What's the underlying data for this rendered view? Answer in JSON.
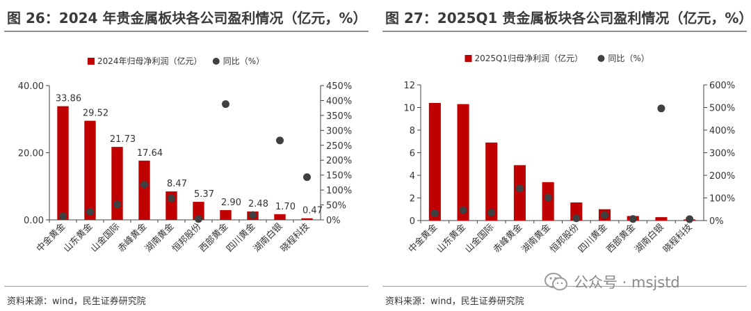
{
  "colors": {
    "bar": "#c00000",
    "dot": "#404040",
    "axis": "#404040",
    "title": "#3a3a3a"
  },
  "figures": [
    {
      "title": "图 26：2024 年贵金属板块各公司盈利情况（亿元，%）",
      "source": "资料来源：wind，民生证券研究院"
    },
    {
      "title": "图 27：2025Q1 贵金属板块各公司盈利情况（亿元，%）",
      "source": "资料来源：wind，民生证券研究院"
    }
  ],
  "chart_data": [
    {
      "type": "bar",
      "categories": [
        "中金黄金",
        "山东黄金",
        "山金国际",
        "赤峰黄金",
        "湖南黄金",
        "恒邦股份",
        "西部黄金",
        "四川黄金",
        "湖南白银",
        "晓程科技"
      ],
      "series": [
        {
          "name": "2024年归母净利润（亿元）",
          "kind": "bar",
          "axis": "left",
          "values": [
            33.86,
            29.52,
            21.73,
            17.64,
            8.47,
            5.37,
            2.9,
            2.48,
            1.7,
            0.47
          ]
        },
        {
          "name": "同比（%）",
          "kind": "dot",
          "axis": "right",
          "values": [
            13,
            27,
            52,
            118,
            72,
            3,
            388,
            16,
            266,
            143
          ]
        }
      ],
      "data_labels": [
        "33.86",
        "29.52",
        "21.73",
        "17.64",
        "8.47",
        "5.37",
        "2.90",
        "2.48",
        "1.70",
        "0.47"
      ],
      "ylim_left": [
        0,
        40
      ],
      "yticks_left": [
        "0.00",
        "20.00",
        "40.00"
      ],
      "ylim_right": [
        0,
        450
      ],
      "yticks_right": [
        "0%",
        "50%",
        "100%",
        "150%",
        "200%",
        "250%",
        "300%",
        "350%",
        "400%",
        "450%"
      ],
      "legend": "top-center",
      "grid": false
    },
    {
      "type": "bar",
      "categories": [
        "中金黄金",
        "山东黄金",
        "山金国际",
        "赤峰黄金",
        "湖南黄金",
        "恒邦股份",
        "四川黄金",
        "西部黄金",
        "湖南白银",
        "晓程科技"
      ],
      "series": [
        {
          "name": "2025Q1归母净利润（亿元）",
          "kind": "bar",
          "axis": "left",
          "values": [
            10.4,
            10.3,
            6.9,
            4.9,
            3.4,
            1.6,
            1.0,
            0.4,
            0.3,
            0.1
          ]
        },
        {
          "name": "同比（%）",
          "kind": "dot",
          "axis": "right",
          "values": [
            32,
            46,
            35,
            142,
            102,
            10,
            24,
            7,
            496,
            6
          ]
        }
      ],
      "ylim_left": [
        0,
        12
      ],
      "yticks_left": [
        "0",
        "2",
        "4",
        "6",
        "8",
        "10",
        "12"
      ],
      "ylim_right": [
        0,
        600
      ],
      "yticks_right": [
        "0%",
        "100%",
        "200%",
        "300%",
        "400%",
        "500%",
        "600%"
      ],
      "legend": "top-center",
      "grid": false
    }
  ],
  "watermark": {
    "text": "公众号 · msjstd"
  }
}
